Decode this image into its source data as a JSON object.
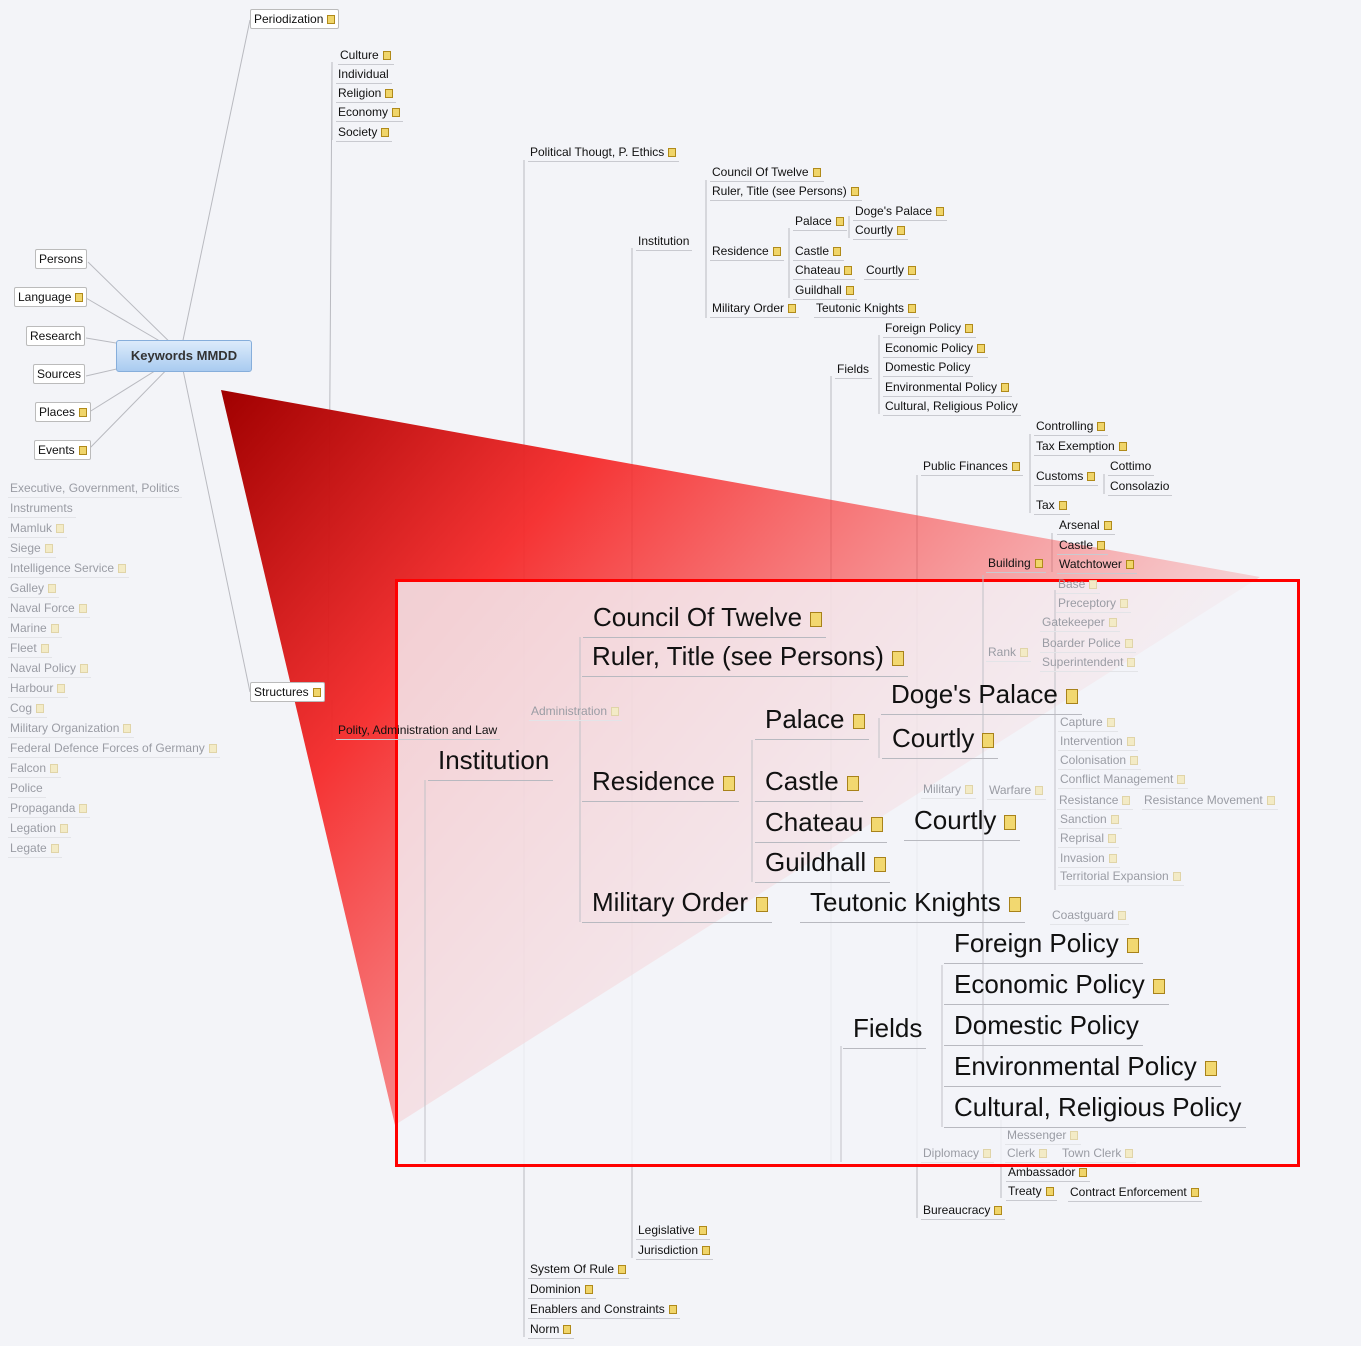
{
  "root": {
    "label": "Keywords MMDD"
  },
  "left_branches": [
    "Persons",
    "Language",
    "Research",
    "Sources",
    "Places",
    "Events"
  ],
  "periodization": "Periodization",
  "culture_group": [
    "Culture",
    "Individual",
    "Religion",
    "Economy",
    "Society"
  ],
  "structures": "Structures",
  "polity": "Polity, Administration and Law",
  "political_thought": "Political Thougt, P. Ethics",
  "institution_branch": {
    "institution": "Institution",
    "council": "Council Of Twelve",
    "ruler": "Ruler, Title (see Persons)",
    "residence": "Residence",
    "palace": "Palace",
    "doges_palace": "Doge's Palace",
    "courtly_1": "Courtly",
    "castle": "Castle",
    "chateau": "Chateau",
    "courtly_2": "Courtly",
    "guildhall": "Guildhall",
    "military_order": "Military Order",
    "teutonic_knights": "Teutonic Knights"
  },
  "fields_branch": {
    "fields": "Fields",
    "items": [
      "Foreign Policy",
      "Economic Policy",
      "Domestic Policy",
      "Environmental Policy",
      "Cultural, Religious Policy"
    ]
  },
  "public_finances": {
    "label": "Public Finances",
    "controlling": "Controlling",
    "tax_exemption": "Tax Exemption",
    "customs": "Customs",
    "cottimo": "Cottimo",
    "consolazio": "Consolazio",
    "tax": "Tax"
  },
  "building": {
    "label": "Building",
    "items": [
      "Arsenal",
      "Castle",
      "Watchtower"
    ]
  },
  "faded": {
    "base": "Base",
    "preceptory": "Preceptory",
    "gatekeeper": "Gatekeeper",
    "rank": "Rank",
    "boarder_police": "Boarder Police",
    "superintendent": "Superintendent",
    "mamluk": "Mamluk",
    "siege": "Siege",
    "capture": "Capture",
    "intervention": "Intervention",
    "colonisation": "Colonisation",
    "conflict_management": "Conflict Management",
    "resistance": "Resistance",
    "resistance_movement": "Resistance Movement",
    "sanction": "Sanction",
    "reprisal": "Reprisal",
    "invasion": "Invasion",
    "territorial_expansion": "Territorial Expansion",
    "military": "Military",
    "warfare": "Warfare",
    "intelligence_service": "Intelligence Service",
    "coastguard": "Coastguard",
    "galley": "Galley",
    "naval_force": "Naval Force",
    "marine": "Marine",
    "fleet": "Fleet",
    "naval_policy": "Naval Policy",
    "harbour": "Harbour",
    "cog": "Cog",
    "military_organization": "Military Organization",
    "federal_defence": "Federal Defence Forces of Germany",
    "falcon": "Falcon",
    "police": "Police",
    "propaganda": "Propaganda",
    "legation": "Legation",
    "legate": "Legate",
    "messenger": "Messenger",
    "diplomacy": "Diplomacy",
    "clerk": "Clerk",
    "town_clerk": "Town Clerk",
    "administration": "Administration",
    "executive": "Executive, Government, Politics",
    "instruments": "Instruments"
  },
  "lower": {
    "ambassador": "Ambassador",
    "treaty": "Treaty",
    "contract_enforcement": "Contract Enforcement",
    "bureaucracy": "Bureaucracy",
    "legislative": "Legislative",
    "jurisdiction": "Jurisdiction",
    "system_of_rule": "System Of Rule",
    "dominion": "Dominion",
    "enablers": "Enablers and Constraints",
    "norm": "Norm"
  },
  "zoom_highlight_color": "#ff0000",
  "wedge_color": "#b00000"
}
